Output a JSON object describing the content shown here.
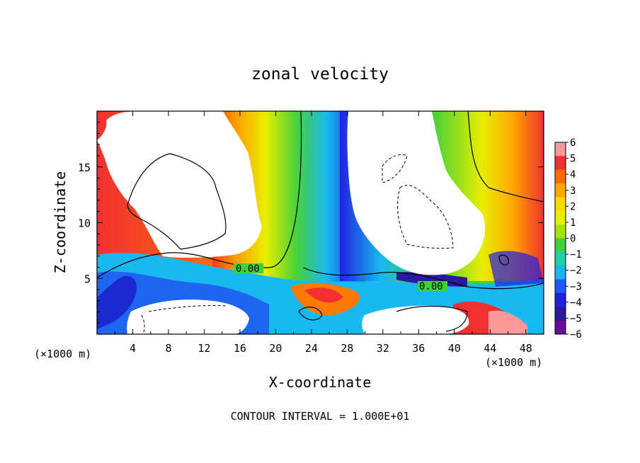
{
  "chart_data": {
    "type": "heatmap",
    "title": "zonal velocity",
    "xlabel": "X-coordinate",
    "ylabel": "Z-coordinate",
    "x_unit": "(×1000 m)",
    "x_unit_right": "(×1000 m)",
    "footer": "CONTOUR INTERVAL = 1.000E+01",
    "xlim": [
      0,
      50
    ],
    "ylim": [
      0,
      20
    ],
    "x_ticks": [
      4,
      8,
      12,
      16,
      20,
      24,
      28,
      32,
      36,
      40,
      44,
      48
    ],
    "y_ticks": [
      5,
      10,
      15
    ],
    "colorbar": {
      "labels": [
        "6",
        "5",
        "4",
        "3",
        "2",
        "1",
        "0",
        "−1",
        "−2",
        "−3",
        "−4",
        "−5",
        "−6"
      ],
      "range": [
        -6,
        6
      ],
      "colors": [
        "#f59a9a",
        "#f23030",
        "#ff6a00",
        "#ffa600",
        "#ffd700",
        "#e9ee00",
        "#a9e000",
        "#3fd03a",
        "#20d0a8",
        "#18b8f0",
        "#1a5aff",
        "#2020e0",
        "#2a1aa0",
        "#6a0a9a"
      ]
    },
    "contour_labels": [
      {
        "text": "0.00",
        "x": 17.0,
        "y": 5.5
      },
      {
        "text": "0.00",
        "x": 37.5,
        "y": 4.1
      }
    ]
  }
}
